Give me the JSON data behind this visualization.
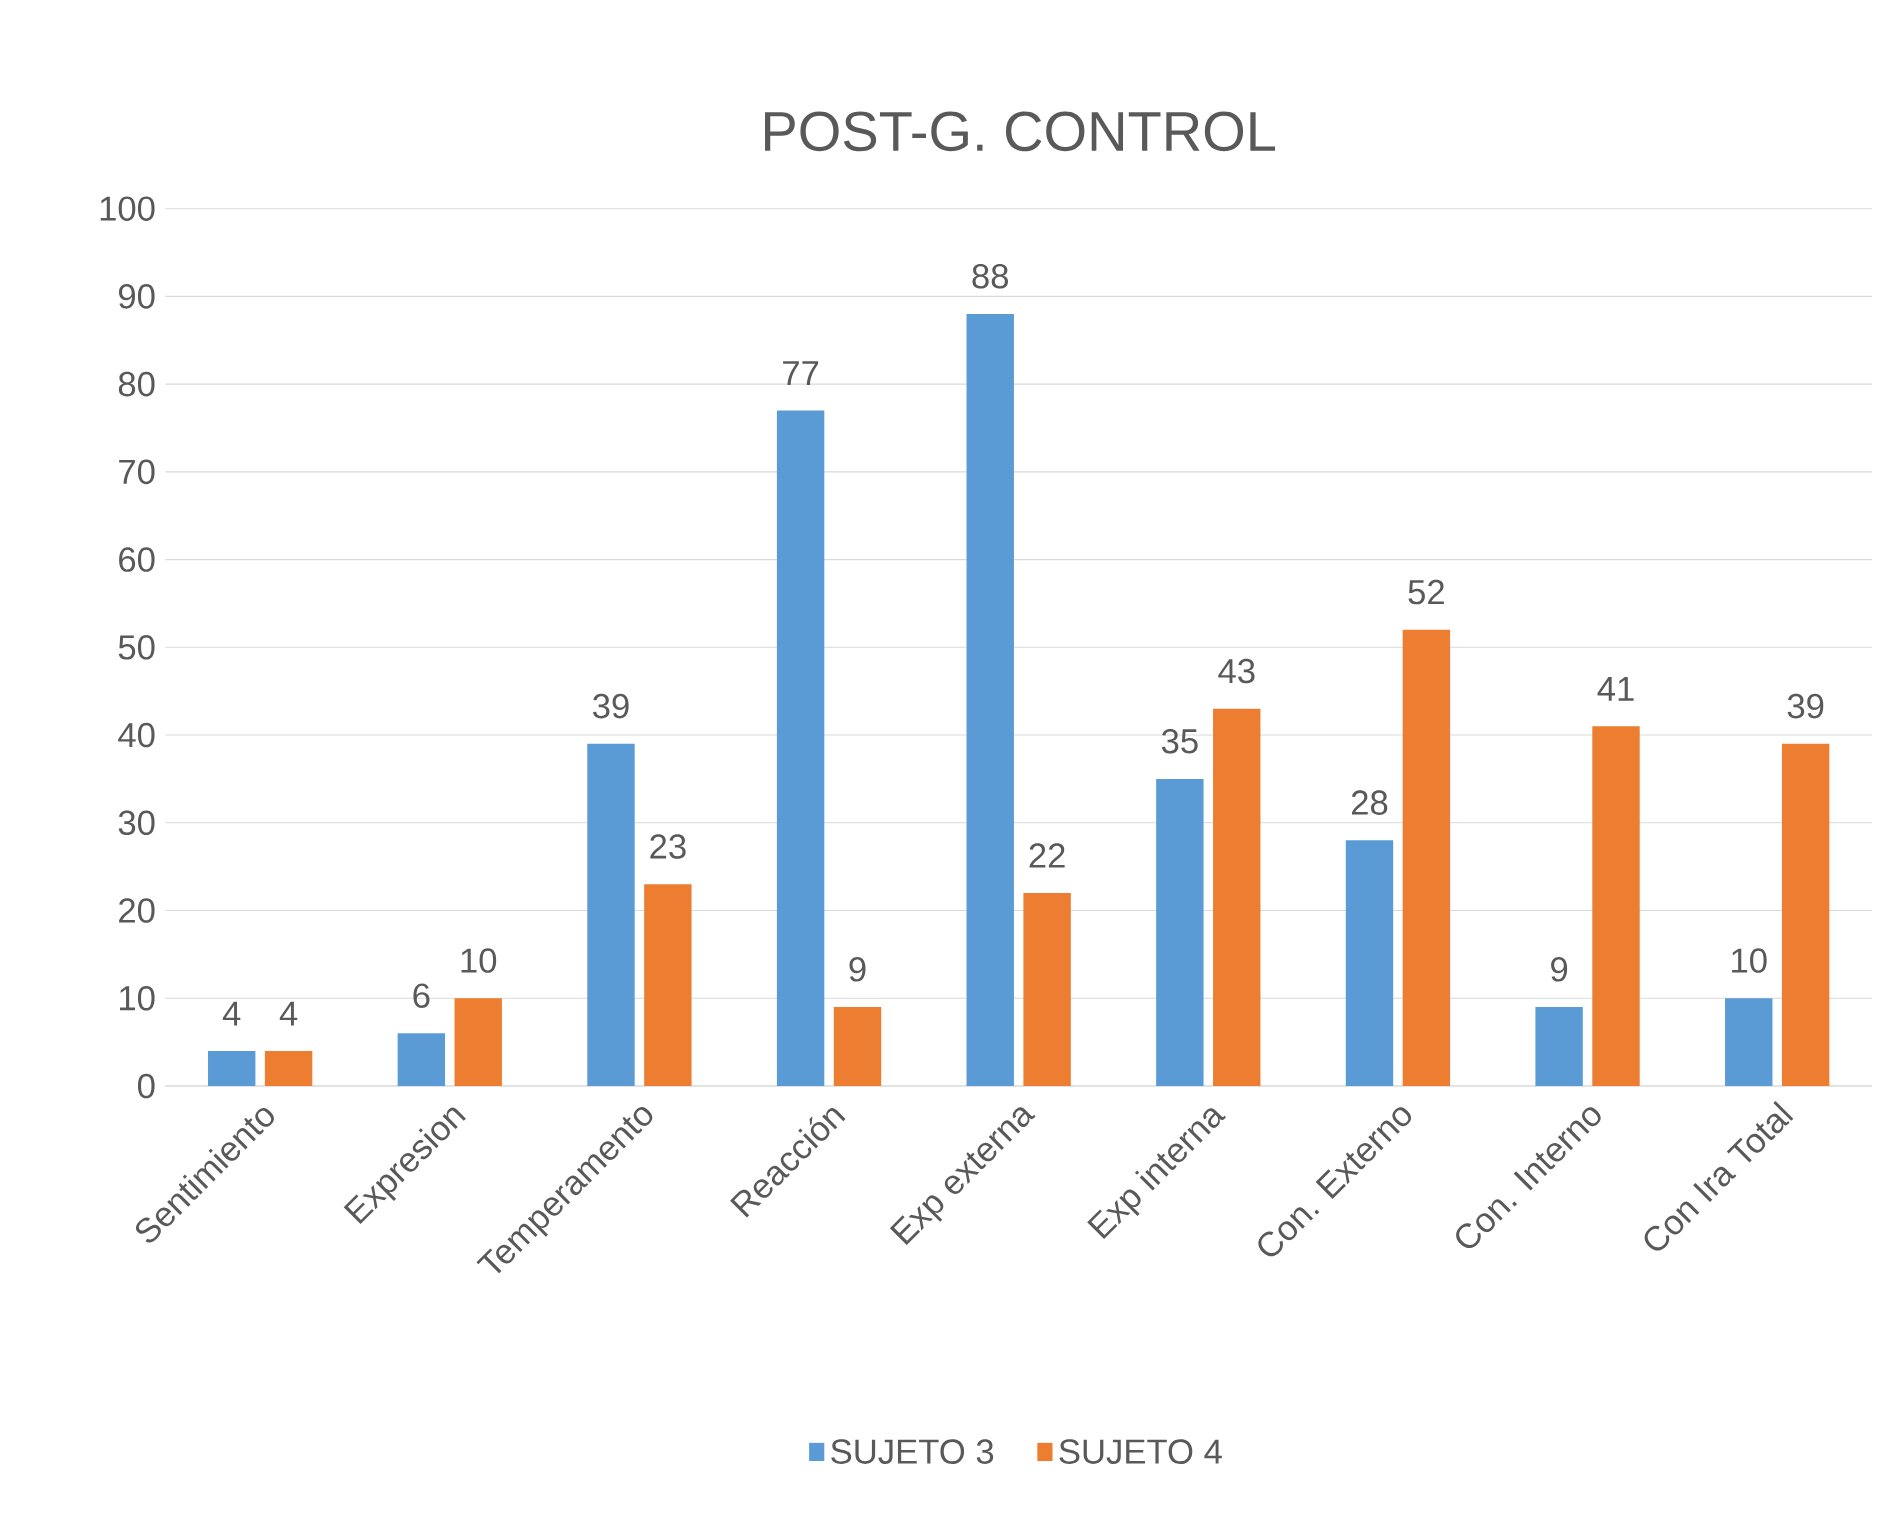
{
  "chart_data": {
    "type": "bar",
    "title": "POST-G. CONTROL",
    "categories": [
      "Sentimiento",
      "Expresion",
      "Temperamento",
      "Reacción",
      "Exp externa",
      "Exp interna",
      "Con. Externo",
      "Con. Interno",
      "Con Ira  Total"
    ],
    "series": [
      {
        "name": "SUJETO 3",
        "color": "#5b9bd5",
        "values": [
          4,
          6,
          39,
          77,
          88,
          35,
          28,
          9,
          10
        ]
      },
      {
        "name": "SUJETO 4",
        "color": "#ed7d31",
        "values": [
          4,
          10,
          23,
          9,
          22,
          43,
          52,
          41,
          39
        ]
      }
    ],
    "ylim": [
      0,
      100
    ],
    "yticks": [
      0,
      10,
      20,
      30,
      40,
      50,
      60,
      70,
      80,
      90,
      100
    ],
    "grid": "y",
    "legend": "bottom",
    "data_labels": true
  }
}
